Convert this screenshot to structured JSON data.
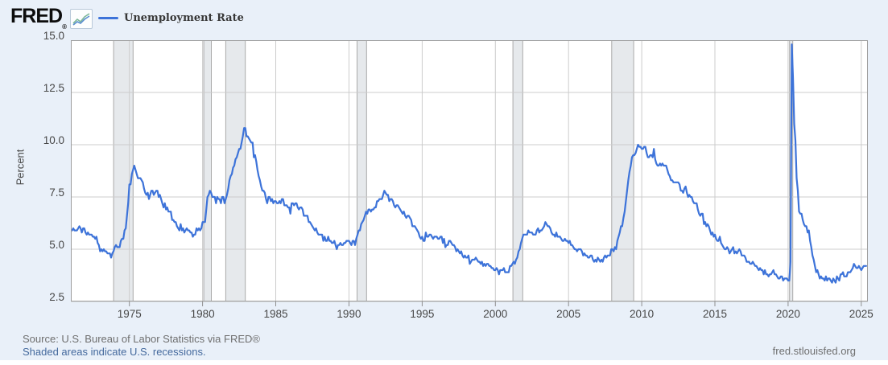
{
  "header": {
    "logo_text": "FRED",
    "registered_mark": "®",
    "logo_icon": "fred-line-chart-icon",
    "legend": {
      "label": "Unemployment Rate",
      "line_color": "#3d73d9"
    }
  },
  "footer": {
    "source": "Source: U.S. Bureau of Labor Statistics via FRED®",
    "recession_note": "Shaded areas indicate U.S. recessions.",
    "site": "fred.stlouisfed.org"
  },
  "colors": {
    "page_background": "#e9f0f9",
    "plot_background": "#ffffff",
    "line": "#3d73d9",
    "gridline": "#cccccc",
    "plot_border": "#9e9e9e",
    "axis_tick": "#8f8f8f",
    "recession_fill": "#e6e9ec",
    "recession_edge": "#a9a9a9",
    "tick_label": "#474747",
    "source_text": "#6f6f6f",
    "link_text": "#44699d"
  },
  "chart_data": {
    "type": "line",
    "title": "Unemployment Rate",
    "ylabel": "Percent",
    "xlabel": "",
    "grid": true,
    "legend_position": "top-left",
    "ylim": [
      2.5,
      15.0
    ],
    "ytick_values": [
      15.0,
      12.5,
      10.0,
      7.5,
      5.0,
      2.5
    ],
    "ytick_labels": [
      "15.0",
      "12.5",
      "10.0",
      "7.5",
      "5.0",
      "2.5"
    ],
    "x_range": [
      1971.0,
      2025.45
    ],
    "xticks": [
      1975,
      1980,
      1985,
      1990,
      1995,
      2000,
      2005,
      2010,
      2015,
      2020,
      2025
    ],
    "frequency": "monthly",
    "recessions": [
      [
        1973.92,
        1975.25
      ],
      [
        1980.08,
        1980.6
      ],
      [
        1981.58,
        1982.92
      ],
      [
        1990.55,
        1991.2
      ],
      [
        2001.2,
        2001.87
      ],
      [
        2007.95,
        2009.45
      ],
      [
        2020.1,
        2020.32
      ]
    ],
    "series": [
      {
        "name": "Unemployment Rate",
        "units": "Percent",
        "values_by_year": {
          "1971": [
            5.9,
            5.9,
            6.0,
            5.9,
            5.9,
            5.9,
            6.0,
            6.1,
            6.0,
            5.8,
            6.0,
            6.0
          ],
          "1972": [
            5.8,
            5.7,
            5.8,
            5.7,
            5.7,
            5.7,
            5.6,
            5.6,
            5.5,
            5.6,
            5.3,
            5.2
          ],
          "1973": [
            4.9,
            5.0,
            4.9,
            5.0,
            4.9,
            4.9,
            4.8,
            4.8,
            4.8,
            4.6,
            4.8,
            4.9
          ],
          "1974": [
            5.1,
            5.2,
            5.1,
            5.1,
            5.1,
            5.4,
            5.5,
            5.5,
            5.9,
            6.0,
            6.6,
            7.2
          ],
          "1975": [
            8.1,
            8.1,
            8.6,
            8.8,
            9.0,
            8.8,
            8.6,
            8.4,
            8.4,
            8.4,
            8.3,
            8.2
          ],
          "1976": [
            7.9,
            7.7,
            7.6,
            7.7,
            7.4,
            7.6,
            7.8,
            7.8,
            7.6,
            7.7,
            7.8,
            7.8
          ],
          "1977": [
            7.5,
            7.6,
            7.4,
            7.2,
            7.0,
            7.2,
            6.9,
            7.0,
            6.8,
            6.8,
            6.8,
            6.4
          ],
          "1978": [
            6.4,
            6.3,
            6.3,
            6.1,
            6.0,
            5.9,
            6.2,
            5.9,
            6.0,
            5.8,
            5.9,
            6.0
          ],
          "1979": [
            5.9,
            5.9,
            5.8,
            5.8,
            5.6,
            5.7,
            5.7,
            6.0,
            5.9,
            6.0,
            5.9,
            6.0
          ],
          "1980": [
            6.3,
            6.3,
            6.3,
            6.9,
            7.5,
            7.6,
            7.8,
            7.7,
            7.5,
            7.5,
            7.5,
            7.2
          ],
          "1981": [
            7.5,
            7.4,
            7.4,
            7.2,
            7.5,
            7.5,
            7.2,
            7.4,
            7.6,
            7.9,
            8.3,
            8.5
          ],
          "1982": [
            8.6,
            8.9,
            9.0,
            9.3,
            9.4,
            9.6,
            9.8,
            9.8,
            10.1,
            10.4,
            10.8,
            10.8
          ],
          "1983": [
            10.4,
            10.4,
            10.3,
            10.2,
            10.1,
            10.1,
            9.4,
            9.5,
            9.2,
            8.8,
            8.5,
            8.3
          ],
          "1984": [
            8.0,
            7.8,
            7.8,
            7.7,
            7.4,
            7.2,
            7.5,
            7.5,
            7.3,
            7.4,
            7.2,
            7.3
          ],
          "1985": [
            7.3,
            7.2,
            7.2,
            7.3,
            7.2,
            7.4,
            7.4,
            7.1,
            7.1,
            7.1,
            7.0,
            7.0
          ],
          "1986": [
            6.7,
            7.2,
            7.2,
            7.1,
            7.2,
            7.2,
            7.0,
            6.9,
            7.0,
            7.0,
            6.9,
            6.6
          ],
          "1987": [
            6.6,
            6.6,
            6.6,
            6.3,
            6.3,
            6.2,
            6.1,
            6.0,
            5.9,
            6.0,
            5.8,
            5.7
          ],
          "1988": [
            5.7,
            5.7,
            5.7,
            5.4,
            5.6,
            5.4,
            5.4,
            5.6,
            5.4,
            5.4,
            5.3,
            5.3
          ],
          "1989": [
            5.4,
            5.2,
            5.0,
            5.2,
            5.2,
            5.3,
            5.2,
            5.2,
            5.3,
            5.3,
            5.4,
            5.4
          ],
          "1990": [
            5.4,
            5.3,
            5.2,
            5.4,
            5.4,
            5.2,
            5.5,
            5.7,
            5.9,
            5.9,
            6.2,
            6.3
          ],
          "1991": [
            6.4,
            6.6,
            6.8,
            6.7,
            6.9,
            6.9,
            6.8,
            6.9,
            6.9,
            7.0,
            7.0,
            7.3
          ],
          "1992": [
            7.3,
            7.4,
            7.4,
            7.4,
            7.6,
            7.8,
            7.7,
            7.6,
            7.6,
            7.3,
            7.4,
            7.4
          ],
          "1993": [
            7.3,
            7.1,
            7.0,
            7.1,
            7.1,
            7.0,
            6.9,
            6.8,
            6.7,
            6.8,
            6.6,
            6.5
          ],
          "1994": [
            6.6,
            6.6,
            6.5,
            6.4,
            6.1,
            6.1,
            6.1,
            6.0,
            5.9,
            5.8,
            5.6,
            5.5
          ],
          "1995": [
            5.6,
            5.4,
            5.4,
            5.8,
            5.6,
            5.6,
            5.7,
            5.7,
            5.6,
            5.5,
            5.6,
            5.6
          ],
          "1996": [
            5.6,
            5.5,
            5.5,
            5.6,
            5.6,
            5.3,
            5.5,
            5.1,
            5.2,
            5.2,
            5.4,
            5.4
          ],
          "1997": [
            5.3,
            5.2,
            5.2,
            5.1,
            4.9,
            5.0,
            4.9,
            4.8,
            4.9,
            4.7,
            4.6,
            4.7
          ],
          "1998": [
            4.6,
            4.6,
            4.7,
            4.3,
            4.4,
            4.5,
            4.5,
            4.5,
            4.6,
            4.5,
            4.4,
            4.4
          ],
          "1999": [
            4.3,
            4.4,
            4.2,
            4.3,
            4.2,
            4.3,
            4.3,
            4.2,
            4.2,
            4.1,
            4.1,
            4.0
          ],
          "2000": [
            4.0,
            4.1,
            4.0,
            3.8,
            4.0,
            4.0,
            4.0,
            4.1,
            3.9,
            3.9,
            3.9,
            3.9
          ],
          "2001": [
            4.2,
            4.2,
            4.3,
            4.4,
            4.3,
            4.5,
            4.6,
            4.9,
            5.0,
            5.3,
            5.5,
            5.7
          ],
          "2002": [
            5.7,
            5.7,
            5.7,
            5.9,
            5.8,
            5.8,
            5.8,
            5.7,
            5.7,
            5.7,
            5.9,
            6.0
          ],
          "2003": [
            5.8,
            5.9,
            5.9,
            6.0,
            6.1,
            6.3,
            6.2,
            6.1,
            6.1,
            6.0,
            5.8,
            5.7
          ],
          "2004": [
            5.7,
            5.6,
            5.8,
            5.6,
            5.6,
            5.6,
            5.5,
            5.4,
            5.4,
            5.5,
            5.4,
            5.4
          ],
          "2005": [
            5.3,
            5.4,
            5.2,
            5.2,
            5.1,
            5.0,
            5.0,
            4.9,
            5.0,
            5.0,
            5.0,
            4.9
          ],
          "2006": [
            4.7,
            4.8,
            4.7,
            4.7,
            4.6,
            4.6,
            4.7,
            4.7,
            4.5,
            4.4,
            4.5,
            4.4
          ],
          "2007": [
            4.6,
            4.5,
            4.4,
            4.5,
            4.4,
            4.6,
            4.7,
            4.6,
            4.7,
            4.7,
            4.7,
            5.0
          ],
          "2008": [
            5.0,
            4.9,
            5.1,
            5.0,
            5.4,
            5.6,
            5.8,
            6.1,
            6.1,
            6.5,
            6.8,
            7.3
          ],
          "2009": [
            7.8,
            8.3,
            8.7,
            9.0,
            9.4,
            9.5,
            9.5,
            9.6,
            9.8,
            10.0,
            9.9,
            9.9
          ],
          "2010": [
            9.8,
            9.8,
            9.9,
            9.9,
            9.6,
            9.4,
            9.4,
            9.5,
            9.5,
            9.4,
            9.8,
            9.3
          ],
          "2011": [
            9.1,
            9.0,
            9.0,
            9.1,
            9.0,
            9.1,
            9.0,
            9.0,
            9.0,
            8.8,
            8.6,
            8.5
          ],
          "2012": [
            8.3,
            8.3,
            8.2,
            8.2,
            8.2,
            8.2,
            8.2,
            8.1,
            7.8,
            7.8,
            7.7,
            7.9
          ],
          "2013": [
            8.0,
            7.7,
            7.5,
            7.6,
            7.5,
            7.5,
            7.3,
            7.2,
            7.2,
            7.2,
            6.9,
            6.7
          ],
          "2014": [
            6.6,
            6.7,
            6.7,
            6.2,
            6.3,
            6.1,
            6.2,
            6.1,
            5.9,
            5.7,
            5.8,
            5.6
          ],
          "2015": [
            5.7,
            5.5,
            5.4,
            5.4,
            5.6,
            5.3,
            5.2,
            5.1,
            5.0,
            5.0,
            5.1,
            5.0
          ],
          "2016": [
            4.8,
            4.9,
            5.0,
            5.1,
            4.8,
            4.9,
            4.8,
            4.9,
            5.0,
            4.9,
            4.7,
            4.7
          ],
          "2017": [
            4.7,
            4.6,
            4.4,
            4.4,
            4.4,
            4.3,
            4.3,
            4.4,
            4.3,
            4.2,
            4.2,
            4.1
          ],
          "2018": [
            4.0,
            4.1,
            4.0,
            4.0,
            3.8,
            4.0,
            3.8,
            3.8,
            3.7,
            3.8,
            3.8,
            3.9
          ],
          "2019": [
            4.0,
            3.8,
            3.8,
            3.7,
            3.6,
            3.6,
            3.7,
            3.7,
            3.5,
            3.6,
            3.6,
            3.6
          ],
          "2020": [
            3.5,
            3.5,
            4.4,
            14.8,
            13.2,
            11.0,
            10.2,
            8.4,
            7.8,
            6.8,
            6.7,
            6.7
          ],
          "2021": [
            6.4,
            6.2,
            6.1,
            6.1,
            5.8,
            5.9,
            5.4,
            5.1,
            4.7,
            4.5,
            4.2,
            3.9
          ],
          "2022": [
            4.0,
            3.8,
            3.6,
            3.7,
            3.6,
            3.6,
            3.5,
            3.7,
            3.5,
            3.6,
            3.6,
            3.5
          ],
          "2023": [
            3.4,
            3.6,
            3.5,
            3.4,
            3.7,
            3.6,
            3.5,
            3.8,
            3.8,
            3.9,
            3.7,
            3.7
          ],
          "2024": [
            3.7,
            3.9,
            3.9,
            3.9,
            4.0,
            4.1,
            4.3,
            4.2,
            4.1,
            4.1,
            4.2,
            4.1
          ],
          "2025": [
            4.0,
            4.1,
            4.2,
            4.2,
            4.2
          ]
        }
      }
    ]
  }
}
